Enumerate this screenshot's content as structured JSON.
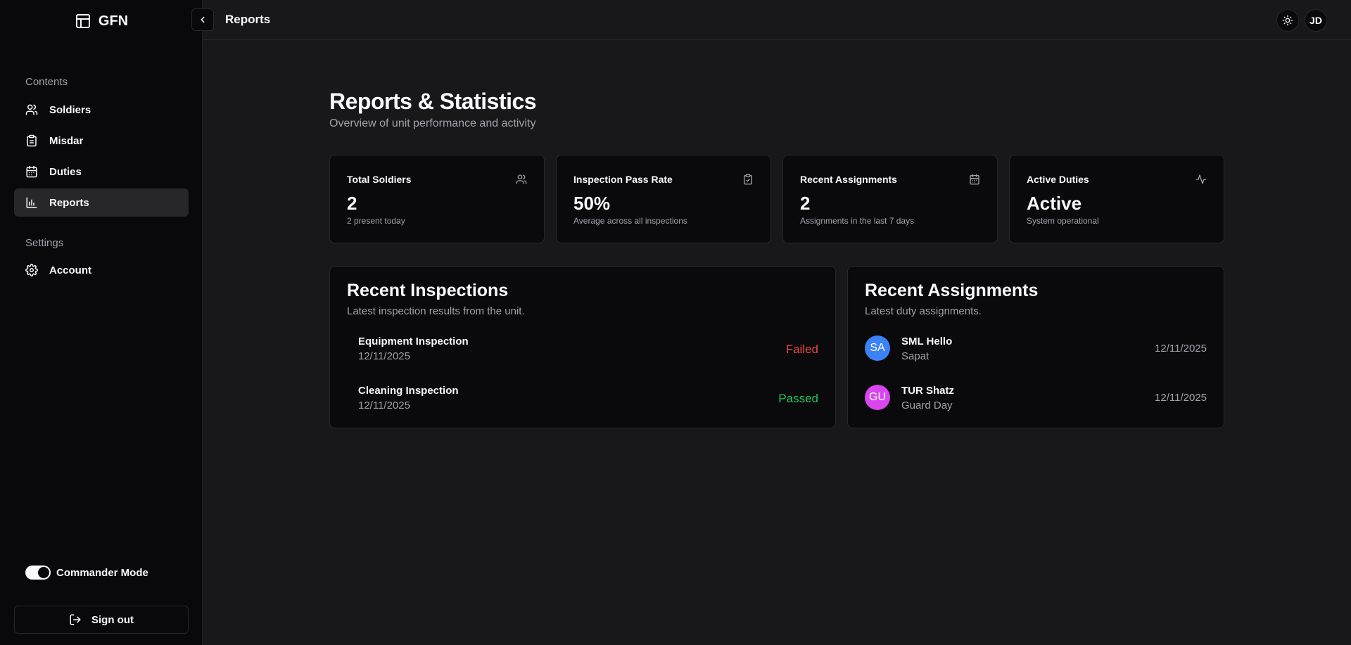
{
  "sidebar": {
    "brand": "GFN",
    "groups": [
      {
        "label": "Contents"
      },
      {
        "label": "Settings"
      }
    ],
    "items": [
      {
        "label": "Soldiers",
        "icon": "users-icon"
      },
      {
        "label": "Misdar",
        "icon": "clipboard-icon"
      },
      {
        "label": "Duties",
        "icon": "calendar-icon"
      },
      {
        "label": "Reports",
        "icon": "bar-chart-icon",
        "active": true
      },
      {
        "label": "Account",
        "icon": "gear-icon"
      }
    ],
    "commander_mode_label": "Commander Mode",
    "commander_mode_on": true,
    "sign_out_label": "Sign out"
  },
  "header": {
    "title": "Reports",
    "avatar_initials": "JD"
  },
  "main": {
    "title": "Reports & Statistics",
    "subtitle": "Overview of unit performance and activity",
    "stats": [
      {
        "label": "Total Soldiers",
        "value": "2",
        "note": "2 present today",
        "icon": "users-icon"
      },
      {
        "label": "Inspection Pass Rate",
        "value": "50%",
        "note": "Average across all inspections",
        "icon": "clipboard-icon"
      },
      {
        "label": "Recent Assignments",
        "value": "2",
        "note": "Assignments in the last 7 days",
        "icon": "calendar-icon"
      },
      {
        "label": "Active Duties",
        "value": "Active",
        "note": "System operational",
        "icon": "activity-icon"
      }
    ],
    "inspections": {
      "title": "Recent Inspections",
      "subtitle": "Latest inspection results from the unit.",
      "rows": [
        {
          "name": "Equipment Inspection",
          "date": "12/11/2025",
          "status": "Failed"
        },
        {
          "name": "Cleaning Inspection",
          "date": "12/11/2025",
          "status": "Passed"
        }
      ]
    },
    "assignments": {
      "title": "Recent Assignments",
      "subtitle": "Latest duty assignments.",
      "rows": [
        {
          "initials": "SA",
          "name": "SML Hello",
          "role": "Sapat",
          "date": "12/11/2025"
        },
        {
          "initials": "GU",
          "name": "TUR Shatz",
          "role": "Guard Day",
          "date": "12/11/2025"
        }
      ]
    }
  },
  "colors": {
    "background": "#18181b",
    "sidebar": "#09090b",
    "card": "#0a0a0c",
    "border": "#27272a",
    "muted_text": "#a1a1aa",
    "failed": "#ef4444",
    "passed": "#22c55e",
    "avatar_blue": "#3b82f6",
    "avatar_pink": "#d946ef"
  }
}
